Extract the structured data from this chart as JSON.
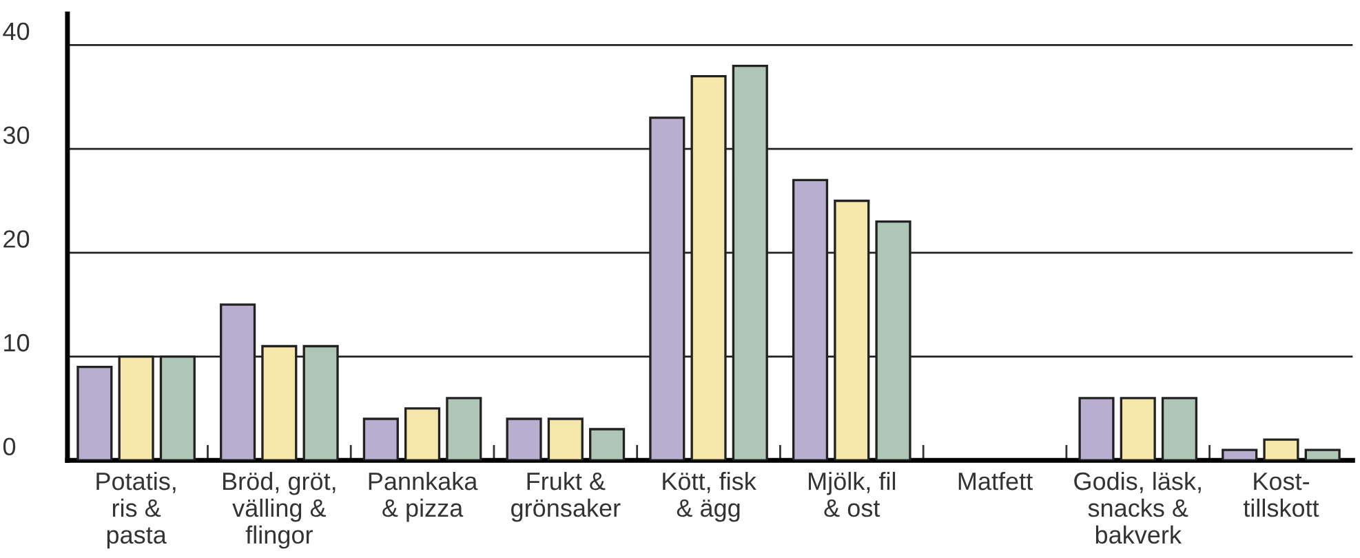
{
  "chart_data": {
    "type": "bar",
    "categories": [
      "Potatis,\nris &\npasta",
      "Bröd, gröt,\nvälling &\nflingor",
      "Pannkaka\n& pizza",
      "Frukt &\ngrönsaker",
      "Kött, fisk\n& ägg",
      "Mjölk, fil\n& ost",
      "Matfett",
      "Godis, läsk,\nsnacks &\nbakverk",
      "Kost-\ntillskott"
    ],
    "series": [
      {
        "color": "#b8aed0",
        "values": [
          9,
          15,
          4,
          4,
          33,
          27,
          0,
          6,
          1
        ]
      },
      {
        "color": "#f5e7a9",
        "values": [
          10,
          11,
          5,
          4,
          37,
          25,
          0,
          6,
          2
        ]
      },
      {
        "color": "#afc5b8",
        "values": [
          10,
          11,
          6,
          3,
          38,
          23,
          0,
          6,
          1
        ]
      }
    ],
    "ylim": [
      0,
      43
    ],
    "yticks": [
      0,
      10,
      20,
      30,
      40
    ],
    "grid": "y",
    "legend": false
  }
}
